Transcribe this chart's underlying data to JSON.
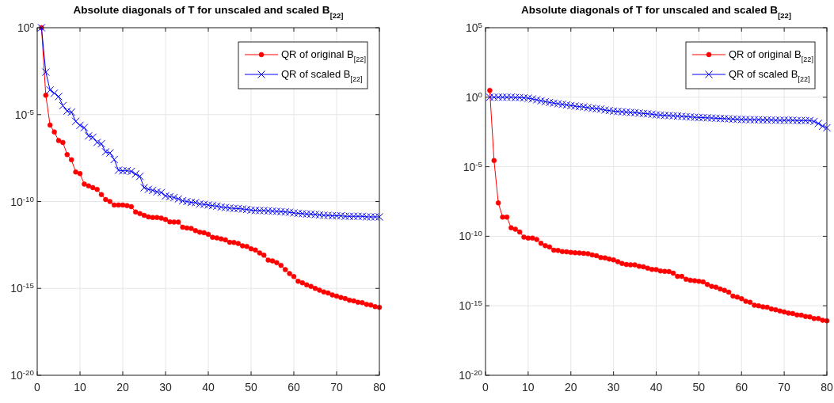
{
  "chart_data": [
    {
      "type": "line",
      "title": "Absolute diagonals of T for unscaled and scaled B$_{[22]}$",
      "log": "y",
      "grid": true,
      "legend": "top right",
      "line_style": "solid",
      "x": [
        1,
        2,
        3,
        4,
        5,
        6,
        7,
        8,
        9,
        10,
        11,
        12,
        13,
        14,
        15,
        16,
        17,
        18,
        19,
        20,
        21,
        22,
        23,
        24,
        25,
        26,
        27,
        28,
        29,
        30,
        31,
        32,
        33,
        34,
        35,
        36,
        37,
        38,
        39,
        40,
        41,
        42,
        43,
        44,
        45,
        46,
        47,
        48,
        49,
        50,
        51,
        52,
        53,
        54,
        55,
        56,
        57,
        58,
        59,
        60,
        61,
        62,
        63,
        64,
        65,
        66,
        67,
        68,
        69,
        70,
        71,
        72,
        73,
        74,
        75,
        76,
        77,
        78,
        79,
        80
      ],
      "xlim": [
        0,
        80
      ],
      "xticks": [
        0,
        10,
        20,
        30,
        40,
        50,
        60,
        70,
        80
      ],
      "ylim": [
        1e-20,
        1
      ],
      "yticks": [
        {
          "value": 1e-20,
          "label": "10$^{-20}$"
        },
        {
          "value": 1e-15,
          "label": "10$^{-15}$"
        },
        {
          "value": 1e-10,
          "label": "10$^{-10}$"
        },
        {
          "value": 1e-05,
          "label": "10$^{-5}$"
        },
        {
          "value": 1,
          "label": "10$^{0}$"
        }
      ],
      "series": [
        {
          "name": "QR of original B$_{[22]}$",
          "color": "#ff0000",
          "marker": "circle",
          "values": [
            1,
            0.00013,
            2.5e-06,
            1e-06,
            3.2e-07,
            2.5e-07,
            5e-08,
            2.5e-08,
            5e-09,
            4e-09,
            1e-09,
            7.9e-10,
            6.3e-10,
            5e-10,
            2.5e-10,
            1.3e-10,
            1e-10,
            6.3e-11,
            6.3e-11,
            6.3e-11,
            5.8e-11,
            5e-11,
            2.5e-11,
            2e-11,
            1.6e-11,
            1.3e-11,
            1.2e-11,
            1.2e-11,
            1.1e-11,
            9.3e-12,
            6.8e-12,
            6.6e-12,
            6.6e-12,
            3.3e-12,
            3e-12,
            2.8e-12,
            2.1e-12,
            1.7e-12,
            1.6e-12,
            1.3e-12,
            8.7e-13,
            8.1e-13,
            7.1e-13,
            6.2e-13,
            4.5e-13,
            4.4e-13,
            3.8e-13,
            2.8e-13,
            2.6e-13,
            1.9e-13,
            1.6e-13,
            1.1e-13,
            8.1e-14,
            4.2e-14,
            3.8e-14,
            3e-14,
            2.1e-14,
            1.2e-14,
            7.1e-15,
            4.8e-15,
            2.6e-15,
            2.1e-15,
            1.6e-15,
            1.3e-15,
            1e-15,
            7.9e-16,
            6.3e-16,
            5.4e-16,
            4.2e-16,
            3.6e-16,
            3e-16,
            2.6e-16,
            2.1e-16,
            1.9e-16,
            1.6e-16,
            1.5e-16,
            1.2e-16,
            1.1e-16,
            8.9e-17,
            8.1e-17
          ]
        },
        {
          "name": "QR of scaled B$_{[22]}$",
          "color": "#0000ff",
          "marker": "cross",
          "values": [
            1,
            0.0028,
            0.00026,
            0.00017,
            0.00011,
            3.3e-05,
            1.6e-05,
            1.4e-05,
            4.1e-06,
            2.4e-06,
            1.8e-06,
            5.9e-07,
            5e-07,
            2.5e-07,
            2.1e-07,
            7.2e-08,
            6.2e-08,
            2.6e-08,
            6.3e-09,
            5.8e-09,
            5.9e-09,
            5.4e-09,
            3.8e-09,
            2.8e-09,
            6.2e-10,
            5e-10,
            4.4e-10,
            3.6e-10,
            3.3e-10,
            2.1e-10,
            1.9e-10,
            1.7e-10,
            1.4e-10,
            1.1e-10,
            1e-10,
            8.9e-11,
            8.7e-11,
            7.2e-11,
            6.8e-11,
            6.3e-11,
            5.8e-11,
            5.4e-11,
            4.8e-11,
            4.5e-11,
            4.2e-11,
            4e-11,
            3.9e-11,
            3.7e-11,
            3.5e-11,
            3.2e-11,
            3.1e-11,
            3e-11,
            3e-11,
            2.9e-11,
            2.8e-11,
            2.7e-11,
            2.6e-11,
            2.5e-11,
            2.4e-11,
            2.2e-11,
            2.1e-11,
            2e-11,
            1.9e-11,
            1.9e-11,
            1.8e-11,
            1.7e-11,
            1.6e-11,
            1.6e-11,
            1.5e-11,
            1.5e-11,
            1.5e-11,
            1.4e-11,
            1.4e-11,
            1.4e-11,
            1.4e-11,
            1.4e-11,
            1.3e-11,
            1.3e-11,
            1.3e-11,
            1.3e-11
          ]
        }
      ]
    },
    {
      "type": "line",
      "title": "Absolute diagonals of T for unscaled and scaled B$_{[22]}$",
      "log": "y",
      "grid": true,
      "legend": "top right",
      "line_style": "solid",
      "x": [
        1,
        2,
        3,
        4,
        5,
        6,
        7,
        8,
        9,
        10,
        11,
        12,
        13,
        14,
        15,
        16,
        17,
        18,
        19,
        20,
        21,
        22,
        23,
        24,
        25,
        26,
        27,
        28,
        29,
        30,
        31,
        32,
        33,
        34,
        35,
        36,
        37,
        38,
        39,
        40,
        41,
        42,
        43,
        44,
        45,
        46,
        47,
        48,
        49,
        50,
        51,
        52,
        53,
        54,
        55,
        56,
        57,
        58,
        59,
        60,
        61,
        62,
        63,
        64,
        65,
        66,
        67,
        68,
        69,
        70,
        71,
        72,
        73,
        74,
        75,
        76,
        77,
        78,
        79,
        80
      ],
      "xlim": [
        0,
        80
      ],
      "xticks": [
        0,
        10,
        20,
        30,
        40,
        50,
        60,
        70,
        80
      ],
      "ylim": [
        1e-20,
        100000.0
      ],
      "yticks": [
        {
          "value": 1e-20,
          "label": "10$^{-20}$"
        },
        {
          "value": 1e-15,
          "label": "10$^{-15}$"
        },
        {
          "value": 1e-10,
          "label": "10$^{-10}$"
        },
        {
          "value": 1e-05,
          "label": "10$^{-5}$"
        },
        {
          "value": 1,
          "label": "10$^{0}$"
        },
        {
          "value": 100000.0,
          "label": "10$^{5}$"
        }
      ],
      "series": [
        {
          "name": "QR of original B$_{[22]}$",
          "color": "#ff0000",
          "marker": "circle",
          "values": [
            3.1,
            2.8e-05,
            2.5e-08,
            2.4e-09,
            2.4e-09,
            4.1e-10,
            3.2e-10,
            2e-10,
            8.7e-11,
            7.4e-11,
            7.4e-11,
            5.9e-11,
            3.1e-11,
            2.1e-11,
            1.7e-11,
            1e-11,
            9.5e-12,
            7.9e-12,
            7.6e-12,
            6.9e-12,
            6.5e-12,
            6.2e-12,
            5.9e-12,
            5.6e-12,
            4.6e-12,
            4e-12,
            3e-12,
            2.8e-12,
            2.3e-12,
            2e-12,
            1.5e-12,
            1.1e-12,
            9.3e-13,
            8.9e-13,
            8.7e-13,
            6.9e-13,
            6.3e-13,
            5.1e-13,
            4.1e-13,
            4e-13,
            3.2e-13,
            3e-13,
            2.9e-13,
            2.2e-13,
            1.3e-13,
            1.3e-13,
            8.1e-14,
            6.9e-14,
            6.3e-14,
            5.8e-14,
            5.2e-14,
            3.4e-14,
            2.5e-14,
            2.2e-14,
            1.6e-14,
            1.3e-14,
            9.5e-15,
            5e-15,
            4.2e-15,
            3.2e-15,
            2.1e-15,
            1.8e-15,
            1.1e-15,
            1e-15,
            8.3e-16,
            7.8e-16,
            5.9e-16,
            5.2e-16,
            4.2e-16,
            3.6e-16,
            3e-16,
            2.8e-16,
            2.2e-16,
            2.1e-16,
            1.7e-16,
            1.6e-16,
            1.2e-16,
            1.2e-16,
            9.1e-17,
            8.3e-17
          ]
        },
        {
          "name": "QR of scaled B$_{[22]}$",
          "color": "#0000ff",
          "marker": "cross",
          "values": [
            1,
            1,
            1,
            1,
            1,
            1,
            0.95,
            0.95,
            0.9,
            0.85,
            0.75,
            0.65,
            0.55,
            0.48,
            0.42,
            0.38,
            0.34,
            0.31,
            0.28,
            0.25,
            0.23,
            0.21,
            0.2,
            0.18,
            0.16,
            0.15,
            0.14,
            0.12,
            0.11,
            0.1,
            0.095,
            0.09,
            0.085,
            0.08,
            0.078,
            0.072,
            0.068,
            0.064,
            0.06,
            0.054,
            0.052,
            0.05,
            0.048,
            0.046,
            0.044,
            0.042,
            0.04,
            0.038,
            0.036,
            0.035,
            0.034,
            0.033,
            0.032,
            0.031,
            0.03,
            0.029,
            0.028,
            0.027,
            0.026,
            0.025,
            0.025,
            0.024,
            0.024,
            0.024,
            0.023,
            0.023,
            0.023,
            0.022,
            0.022,
            0.022,
            0.022,
            0.022,
            0.021,
            0.021,
            0.021,
            0.021,
            0.018,
            0.013,
            0.0083,
            0.0063
          ]
        }
      ]
    }
  ]
}
